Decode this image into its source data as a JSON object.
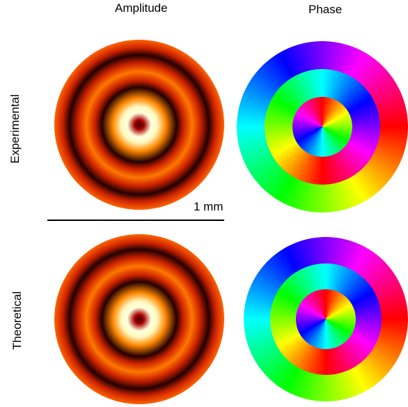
{
  "columns": [
    "Amplitude",
    "Phase"
  ],
  "rows": [
    "Experimental",
    "Theoretical"
  ],
  "scale_bar": "1 mm"
}
